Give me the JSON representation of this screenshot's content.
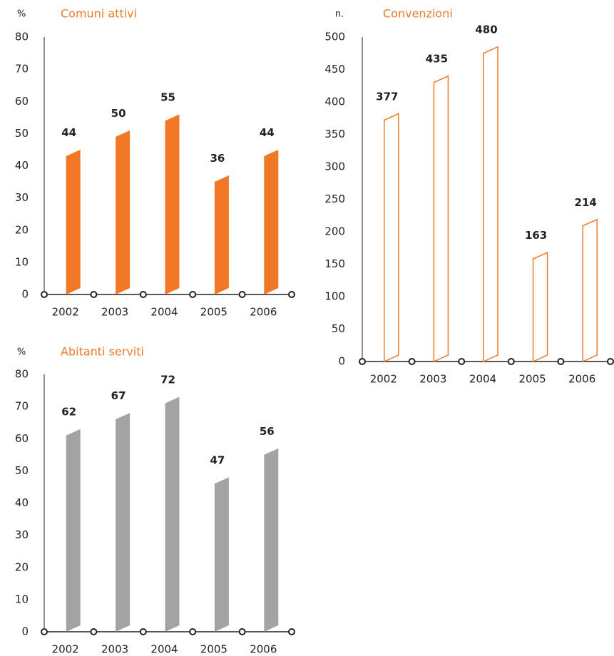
{
  "chart_data": [
    {
      "type": "bar",
      "unit": "%",
      "title": "Comuni attivi",
      "categories": [
        "2002",
        "2003",
        "2004",
        "2005",
        "2006"
      ],
      "values": [
        44,
        50,
        55,
        36,
        44
      ],
      "color": "#f07826",
      "bar_style": "filled",
      "ylim": [
        0,
        80
      ],
      "yticks": [
        0,
        10,
        20,
        30,
        40,
        50,
        60,
        70,
        80
      ]
    },
    {
      "type": "bar",
      "unit": "n.",
      "title": "Convenzioni",
      "categories": [
        "2002",
        "2003",
        "2004",
        "2005",
        "2006"
      ],
      "values": [
        377,
        435,
        480,
        163,
        214
      ],
      "color": "#f07826",
      "bar_style": "outline",
      "ylim": [
        0,
        500
      ],
      "yticks": [
        0,
        50,
        100,
        150,
        200,
        250,
        300,
        350,
        400,
        450,
        500
      ]
    },
    {
      "type": "bar",
      "unit": "%",
      "title": "Abitanti serviti",
      "categories": [
        "2002",
        "2003",
        "2004",
        "2005",
        "2006"
      ],
      "values": [
        62,
        67,
        72,
        47,
        56
      ],
      "color": "#a3a3a3",
      "bar_style": "filled",
      "ylim": [
        0,
        80
      ],
      "yticks": [
        0,
        10,
        20,
        30,
        40,
        50,
        60,
        70,
        80
      ]
    }
  ]
}
